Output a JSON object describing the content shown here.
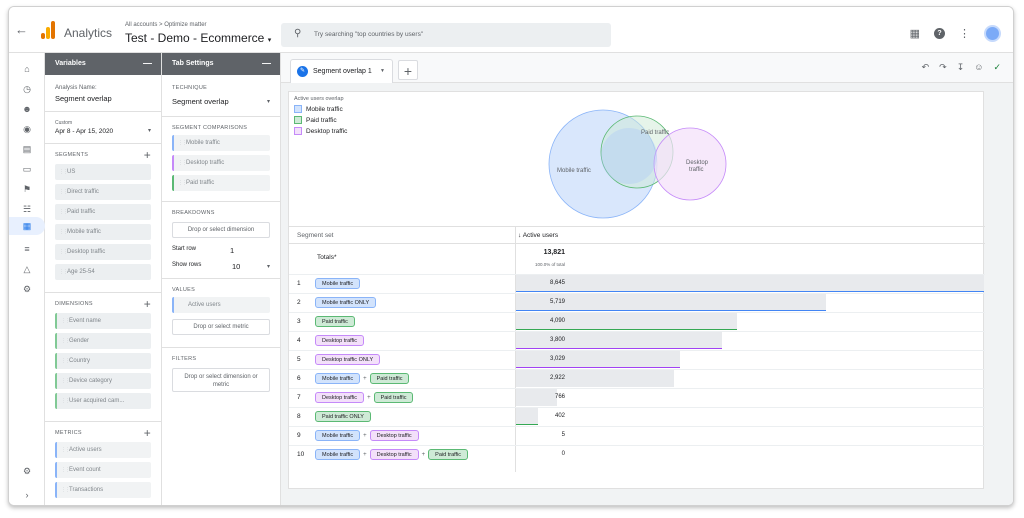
{
  "header": {
    "app_name": "Analytics",
    "account_crumb": "All accounts > Optimize matter",
    "property_name": "Test - Demo - Ecommerce",
    "search_placeholder": "Try searching \"top countries by users\""
  },
  "variables_panel": {
    "title": "Variables",
    "analysis_name_label": "Analysis Name:",
    "analysis_name": "Segment overlap",
    "date_custom_label": "Custom",
    "date_range": "Apr 8 - Apr 15, 2020",
    "segments_title": "SEGMENTS",
    "segments": [
      "US",
      "Direct traffic",
      "Paid traffic",
      "Mobile traffic",
      "Desktop traffic",
      "Age 25-54"
    ],
    "dimensions_title": "DIMENSIONS",
    "dimensions": [
      "Event name",
      "Gender",
      "Country",
      "Device category",
      "User acquired cam..."
    ],
    "metrics_title": "METRICS",
    "metrics": [
      "Active users",
      "Event count",
      "Transactions"
    ]
  },
  "tab_settings": {
    "title": "Tab Settings",
    "technique_label": "TECHNIQUE",
    "technique": "Segment overlap",
    "segment_comparisons_label": "SEGMENT COMPARISONS",
    "segment_comparisons": [
      "Mobile traffic",
      "Desktop traffic",
      "Paid traffic"
    ],
    "breakdowns_label": "BREAKDOWNS",
    "breakdowns_drop": "Drop or select dimension",
    "start_row_label": "Start row",
    "start_row": "1",
    "show_rows_label": "Show rows",
    "show_rows": "10",
    "values_label": "VALUES",
    "values": [
      "Active users"
    ],
    "values_drop": "Drop or select metric",
    "filters_label": "FILTERS",
    "filters_drop": "Drop or select dimension or metric"
  },
  "canvas": {
    "tab_name": "Segment overlap 1",
    "legend_title": "Active users overlap",
    "legend": [
      {
        "label": "Mobile traffic",
        "color": "#8ab4f8",
        "fill": "#d2e3fc"
      },
      {
        "label": "Paid traffic",
        "color": "#5bb974",
        "fill": "#ceead6"
      },
      {
        "label": "Desktop traffic",
        "color": "#c58af9",
        "fill": "#f3e0fa"
      }
    ],
    "venn_labels": {
      "mobile": "Mobile traffic",
      "paid": "Paid traffic",
      "desktop_line1": "Desktop",
      "desktop_line2": "traffic"
    },
    "col_segment_set": "Segment set",
    "col_active_users": "↓ Active users",
    "totals_label": "Totals*",
    "totals_value": "13,821",
    "totals_pct": "100.0% of total",
    "rows": [
      {
        "idx": "1",
        "segs": [
          {
            "t": "Mobile traffic",
            "k": "mobile"
          }
        ],
        "value": "8,645",
        "n": 8645,
        "line": "#4285f4"
      },
      {
        "idx": "2",
        "segs": [
          {
            "t": "Mobile traffic ONLY",
            "k": "mobile"
          }
        ],
        "value": "5,719",
        "n": 5719,
        "line": "#4285f4"
      },
      {
        "idx": "3",
        "segs": [
          {
            "t": "Paid traffic",
            "k": "paid"
          }
        ],
        "value": "4,090",
        "n": 4090,
        "line": "#34a853"
      },
      {
        "idx": "4",
        "segs": [
          {
            "t": "Desktop traffic",
            "k": "desktop"
          }
        ],
        "value": "3,800",
        "n": 3800,
        "line": "#a142f4"
      },
      {
        "idx": "5",
        "segs": [
          {
            "t": "Desktop traffic ONLY",
            "k": "desktop"
          }
        ],
        "value": "3,029",
        "n": 3029,
        "line": "#a142f4"
      },
      {
        "idx": "6",
        "segs": [
          {
            "t": "Mobile traffic",
            "k": "mobile"
          },
          {
            "t": "Paid traffic",
            "k": "paid"
          }
        ],
        "value": "2,922",
        "n": 2922,
        "line": ""
      },
      {
        "idx": "7",
        "segs": [
          {
            "t": "Desktop traffic",
            "k": "desktop"
          },
          {
            "t": "Paid traffic",
            "k": "paid"
          }
        ],
        "value": "766",
        "n": 766,
        "line": ""
      },
      {
        "idx": "8",
        "segs": [
          {
            "t": "Paid traffic ONLY",
            "k": "paid"
          }
        ],
        "value": "402",
        "n": 402,
        "line": "#34a853"
      },
      {
        "idx": "9",
        "segs": [
          {
            "t": "Mobile traffic",
            "k": "mobile"
          },
          {
            "t": "Desktop traffic",
            "k": "desktop"
          }
        ],
        "value": "5",
        "n": 5,
        "line": ""
      },
      {
        "idx": "10",
        "segs": [
          {
            "t": "Mobile traffic",
            "k": "mobile"
          },
          {
            "t": "Desktop traffic",
            "k": "desktop"
          },
          {
            "t": "Paid traffic",
            "k": "paid"
          }
        ],
        "value": "0",
        "n": 0,
        "line": ""
      }
    ]
  }
}
